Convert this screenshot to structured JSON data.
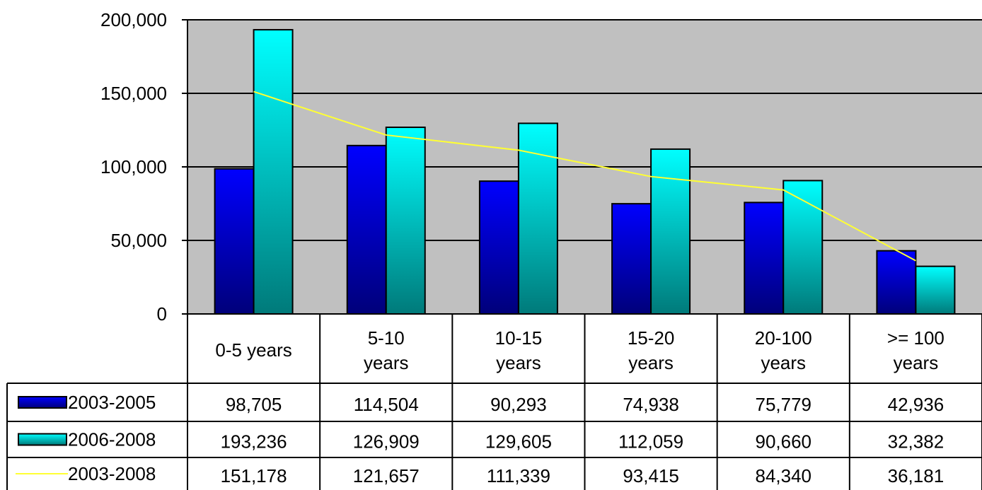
{
  "chart_data": {
    "type": "bar",
    "title": "",
    "xlabel": "",
    "ylabel": "",
    "ylim": [
      0,
      200000
    ],
    "y_ticks": [
      0,
      50000,
      100000,
      150000,
      200000
    ],
    "y_tick_labels": [
      "0",
      "50,000",
      "100,000",
      "150,000",
      "200,000"
    ],
    "grid": true,
    "legend_placement": "data-table-left",
    "plot_background": "#c0c0c0",
    "categories": [
      [
        "0-5 years"
      ],
      [
        "5-10",
        "years"
      ],
      [
        "10-15",
        "years"
      ],
      [
        "15-20",
        "years"
      ],
      [
        "20-100",
        "years"
      ],
      [
        ">= 100",
        "years"
      ]
    ],
    "series": [
      {
        "name": "2003-2005",
        "type": "bar",
        "color_top": "#0000ff",
        "color_bottom": "#00007a",
        "values": [
          98705,
          114504,
          90293,
          74938,
          75779,
          42936
        ],
        "labels": [
          "98,705",
          "114,504",
          "90,293",
          "74,938",
          "75,779",
          "42,936"
        ]
      },
      {
        "name": "2006-2008",
        "type": "bar",
        "color_top": "#00ffff",
        "color_bottom": "#007a7a",
        "values": [
          193236,
          126909,
          129605,
          112059,
          90660,
          32382
        ],
        "labels": [
          "193,236",
          "126,909",
          "129,605",
          "112,059",
          "90,660",
          "32,382"
        ]
      },
      {
        "name": "2003-2008",
        "type": "line",
        "color": "#ffff33",
        "values": [
          151178,
          121657,
          111339,
          93415,
          84340,
          36181
        ],
        "labels": [
          "151,178",
          "121,657",
          "111,339",
          "93,415",
          "84,340",
          "36,181"
        ]
      }
    ]
  }
}
